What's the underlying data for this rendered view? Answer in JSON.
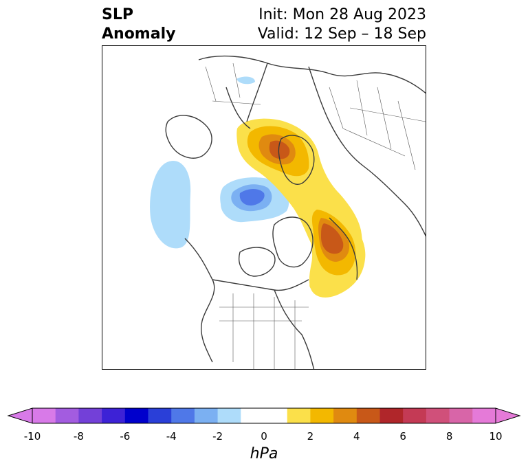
{
  "title": {
    "left_line1": "SLP",
    "left_line2": "Anomaly",
    "right_line1": "Init: Mon 28 Aug 2023",
    "right_line2": "Valid: 12 Sep – 18 Sep"
  },
  "colorbar": {
    "unit": "hPa",
    "ticks": [
      "-10",
      "-8",
      "-6",
      "-4",
      "-2",
      "0",
      "2",
      "4",
      "6",
      "8",
      "10"
    ],
    "colors": [
      "#d87ae8",
      "#a35ce0",
      "#7340d8",
      "#3d22d6",
      "#0000cc",
      "#2a3fd8",
      "#4f78e8",
      "#7bb0f2",
      "#aedcfa",
      "#ffffff",
      "#ffffff",
      "#fbe04a",
      "#f3b800",
      "#e08a10",
      "#c85818",
      "#b0262a",
      "#c43a55",
      "#d0507a",
      "#d865a8",
      "#e57ad8"
    ],
    "under_color": "#d87ae8",
    "over_color": "#e57ad8"
  },
  "map": {
    "projection": "polar stereographic (North Pole)",
    "variable": "sea level pressure anomaly",
    "anomaly_centers": [
      {
        "sign": "positive",
        "max_hPa": 6,
        "region": "Scandinavia / northwest Russia"
      },
      {
        "sign": "positive",
        "max_hPa": 6,
        "region": "Greenland Sea / east Greenland"
      },
      {
        "sign": "negative",
        "min_hPa": -4,
        "region": "Kara / Barents sector of Arctic"
      },
      {
        "sign": "negative",
        "min_hPa": -2,
        "region": "Aleutians / North Pacific"
      }
    ]
  }
}
